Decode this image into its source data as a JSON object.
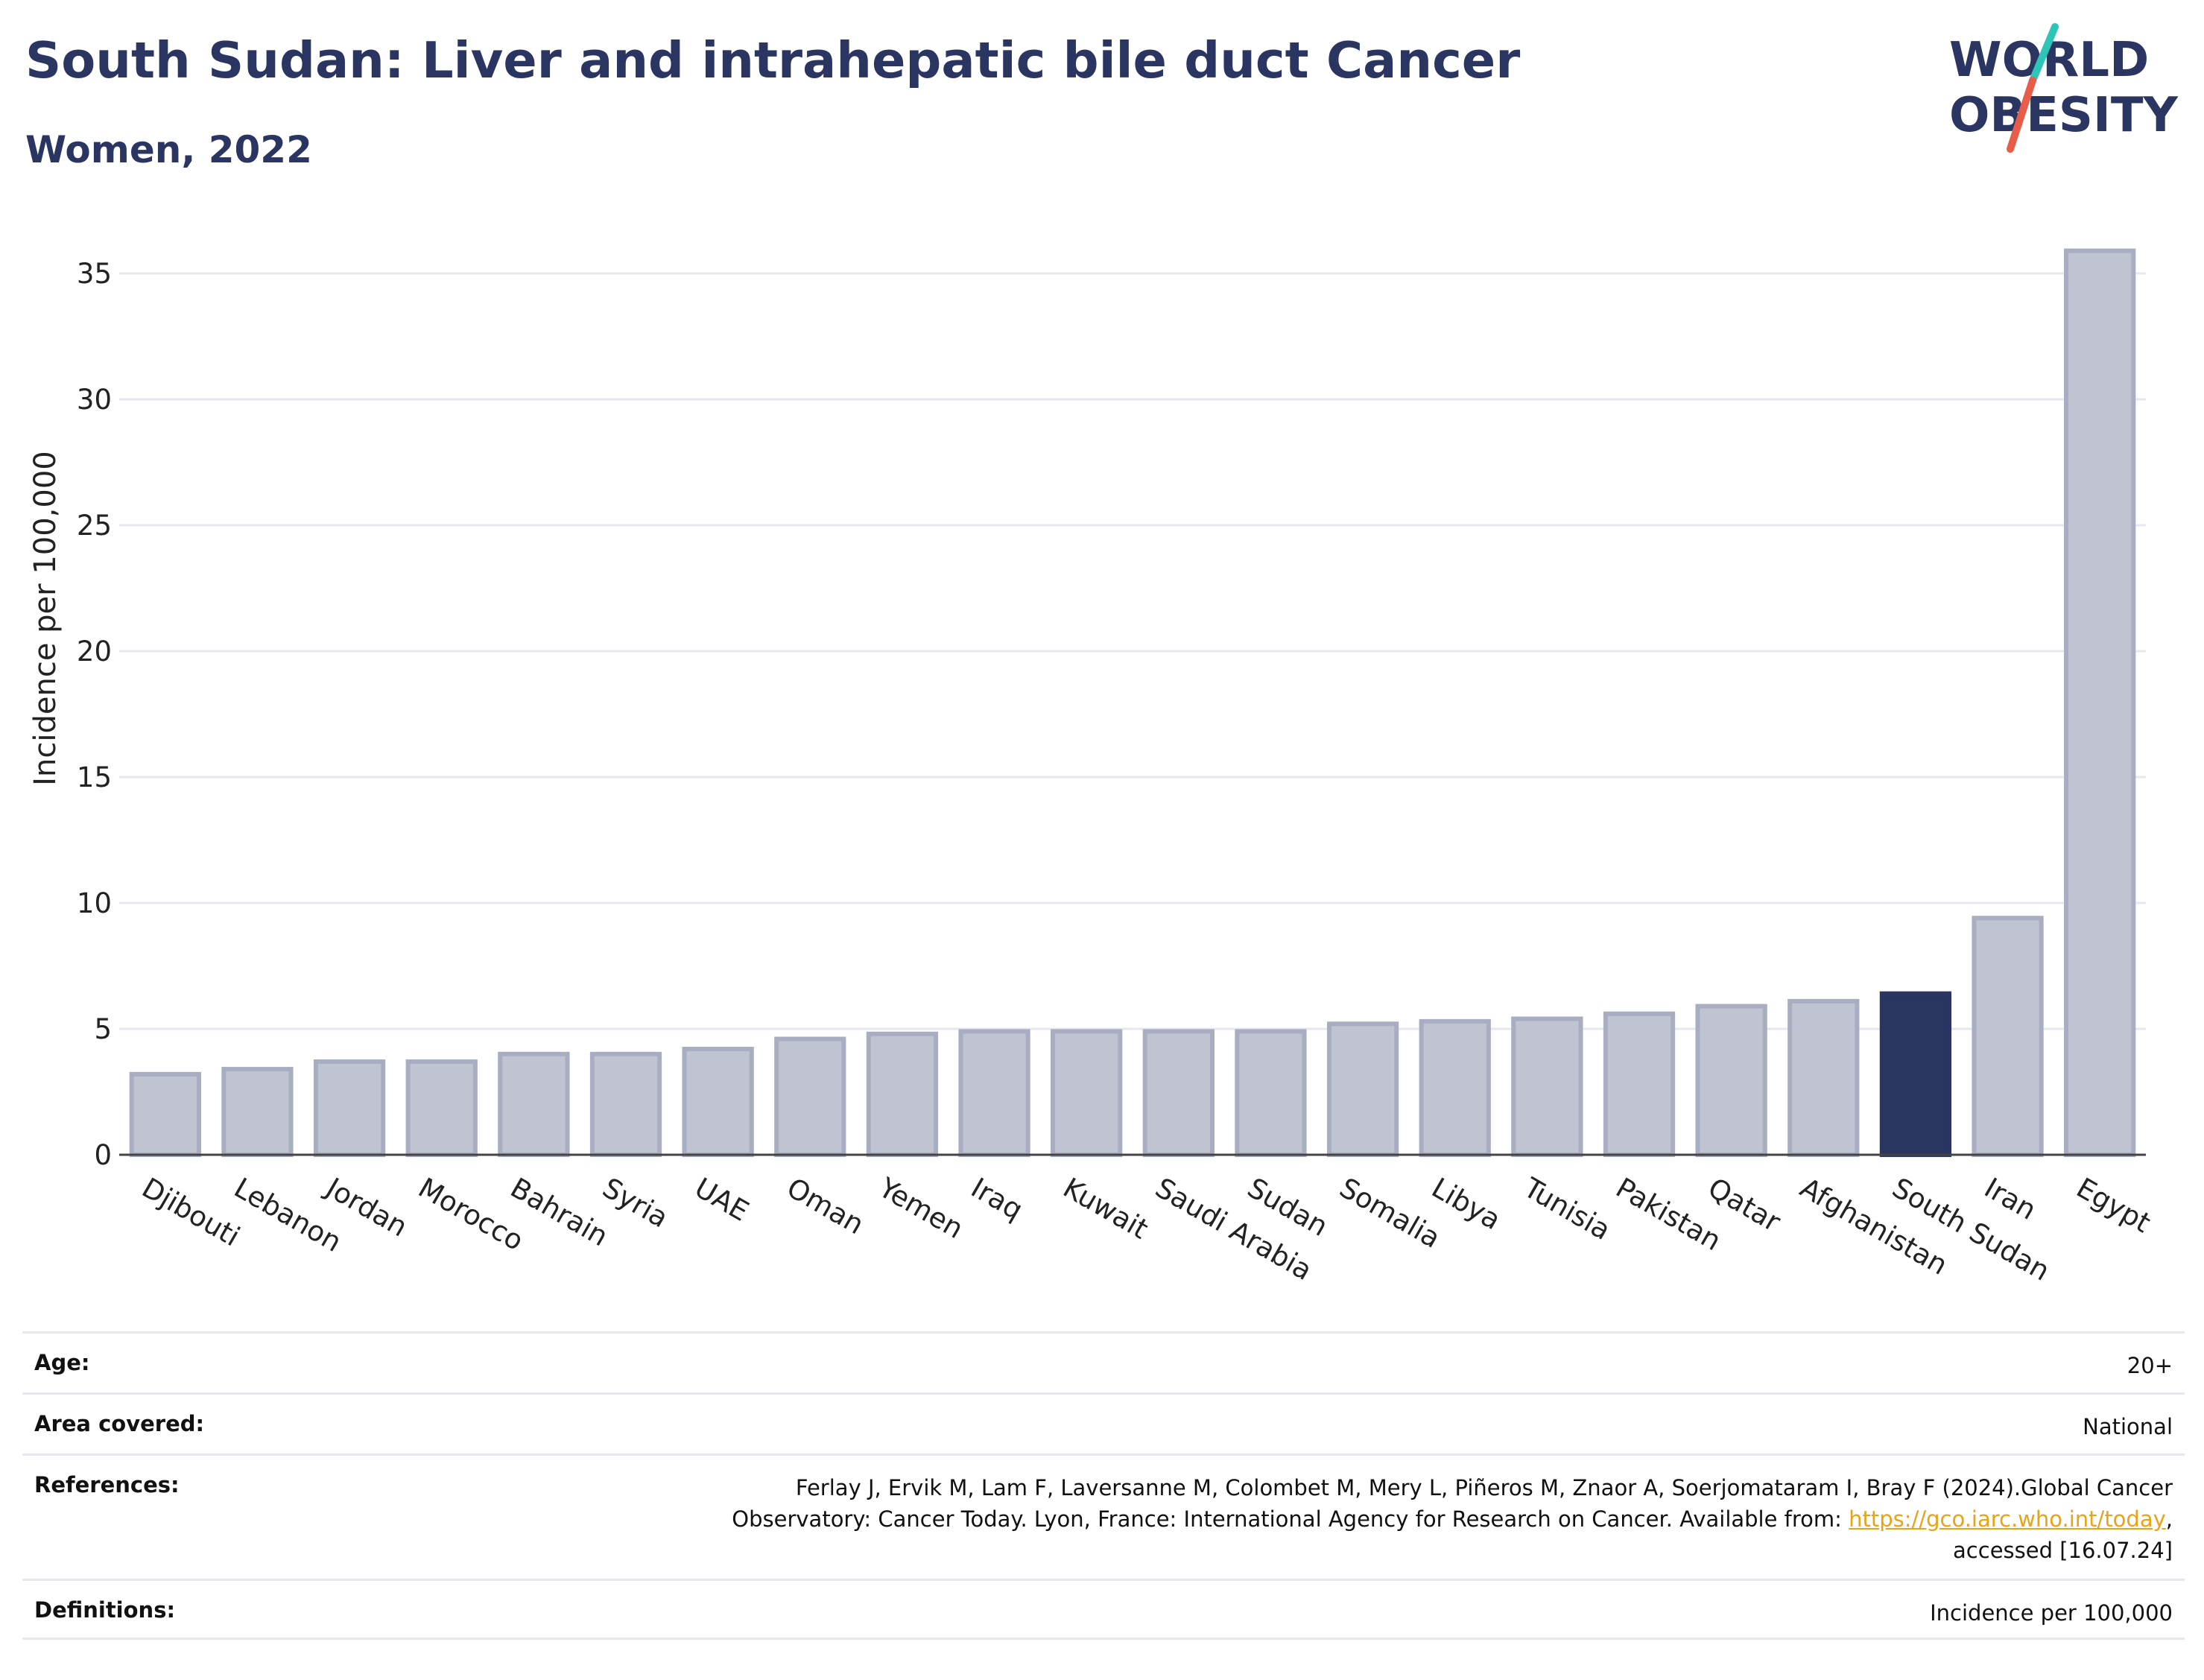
{
  "header": {
    "title": "South Sudan: Liver and intrahepatic bile duct Cancer",
    "subtitle": "Women, 2022"
  },
  "logo": {
    "line1": "WORLD",
    "line2": "OBESITY",
    "slash_colors": [
      "#2ec4b6",
      "#e85d4a"
    ],
    "text_color": "#2b3561"
  },
  "colors": {
    "highlight": "#2b3561",
    "bar_fill": "#c0c4d2",
    "bar_stroke": "#a8adc2"
  },
  "chart_data": {
    "type": "bar",
    "title": "South Sudan: Liver and intrahepatic bile duct Cancer",
    "subtitle": "Women, 2022",
    "xlabel": "",
    "ylabel": "Incidence per 100,000",
    "ylim": [
      0,
      36
    ],
    "yticks": [
      0,
      5,
      10,
      15,
      20,
      25,
      30,
      35
    ],
    "grid": true,
    "highlight": "South Sudan",
    "categories": [
      "Djibouti",
      "Lebanon",
      "Jordan",
      "Morocco",
      "Bahrain",
      "Syria",
      "UAE",
      "Oman",
      "Yemen",
      "Iraq",
      "Kuwait",
      "Saudi Arabia",
      "Sudan",
      "Somalia",
      "Libya",
      "Tunisia",
      "Pakistan",
      "Qatar",
      "Afghanistan",
      "South Sudan",
      "Iran",
      "Egypt"
    ],
    "values": [
      3.2,
      3.4,
      3.7,
      3.7,
      4.0,
      4.0,
      4.2,
      4.6,
      4.8,
      4.9,
      4.9,
      4.9,
      4.9,
      5.2,
      5.3,
      5.4,
      5.6,
      5.9,
      6.1,
      6.4,
      9.4,
      35.9
    ]
  },
  "info": {
    "age_label": "Age:",
    "age_value": "20+",
    "area_label": "Area covered:",
    "area_value": "National",
    "references_label": "References:",
    "references_line1": "Ferlay J, Ervik M, Lam F, Laversanne M, Colombet M, Mery L, Piñeros M, Znaor A, Soerjomataram I, Bray F (2024).Global Cancer",
    "references_line2": "Observatory: Cancer Today. Lyon, France: International Agency for Research on Cancer. Available from: ",
    "references_link": "https://gco.iarc.who.int/today",
    "references_line2_end": ",",
    "references_line3": "accessed [16.07.24]",
    "definitions_label": "Definitions:",
    "definitions_value": "Incidence per 100,000"
  }
}
